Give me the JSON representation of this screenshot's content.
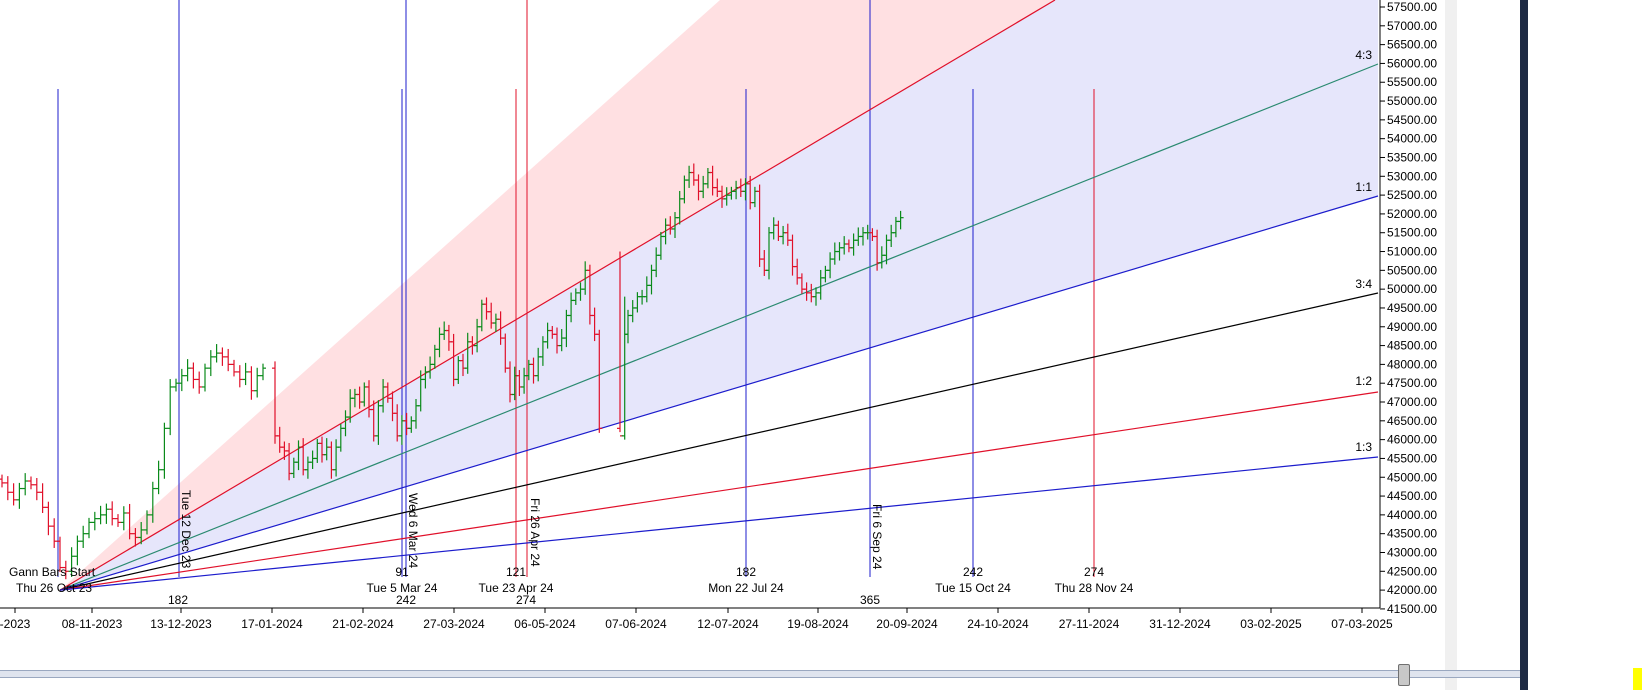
{
  "chart_data": {
    "type": "bar",
    "style": "ohlc",
    "colors": {
      "up": "#0a8a1a",
      "down": "#e0102a",
      "blue": "#1c1ccc",
      "red": "#e0102a",
      "teal": "#2a8a70",
      "black": "#000000",
      "fill_pink": "#ffe0e2",
      "fill_lavender": "#e6e6fb"
    },
    "y_axis": {
      "range": [
        41500,
        57500
      ],
      "tick_labels": [
        "57500.00",
        "57000.00",
        "56500.00",
        "56000.00",
        "55500.00",
        "55000.00",
        "54500.00",
        "54000.00",
        "53500.00",
        "53000.00",
        "52500.00",
        "52000.00",
        "51500.00",
        "51000.00",
        "50500.00",
        "50000.00",
        "49500.00",
        "49000.00",
        "48500.00",
        "48000.00",
        "47500.00",
        "47000.00",
        "46500.00",
        "46000.00",
        "45500.00",
        "45000.00",
        "44500.00",
        "44000.00",
        "43500.00",
        "43000.00",
        "42500.00",
        "42000.00",
        "41500.00"
      ]
    },
    "x_axis": {
      "tick_labels": [
        "-2023",
        "08-11-2023",
        "13-12-2023",
        "17-01-2024",
        "21-02-2024",
        "27-03-2024",
        "06-05-2024",
        "07-06-2024",
        "12-07-2024",
        "19-08-2024",
        "20-09-2024",
        "24-10-2024",
        "27-11-2024",
        "31-12-2024",
        "03-02-2025",
        "07-03-2025"
      ]
    },
    "gann_origin": {
      "label": "Gann Bars Start",
      "date_label": "Thu 26 Oct 23",
      "price": 42000
    },
    "fan_ratios": [
      "4:3",
      "1:1",
      "3:4",
      "1:2",
      "1:3"
    ],
    "cycle_lines": [
      {
        "top_text": "91",
        "bottom_text": "Tue 5 Mar 24"
      },
      {
        "top_text": "121",
        "bottom_text": "Tue 23 Apr 24"
      },
      {
        "top_text": "182",
        "bottom_text": "Mon 22 Jul 24"
      },
      {
        "top_text": "242",
        "bottom_text": "Tue 15 Oct 24"
      },
      {
        "top_text": "274",
        "bottom_text": "Thu 28 Nov 24"
      }
    ],
    "full_lines": [
      {
        "rot_text": "Tue 12 Dec 23",
        "bottom_text": "182"
      },
      {
        "rot_text": "Wed 6 Mar 24",
        "bottom_text": "242"
      },
      {
        "rot_text": "Fri 26 Apr 24",
        "bottom_text": "274"
      },
      {
        "rot_text": "Fri 6 Sep 24",
        "bottom_text": "365"
      }
    ],
    "price_series_approx": [
      44850,
      44600,
      44400,
      44700,
      44900,
      44800,
      44600,
      44200,
      43700,
      43300,
      42600,
      42500,
      42900,
      43300,
      43500,
      43800,
      43900,
      44000,
      44150,
      43900,
      43800,
      44050,
      43500,
      43400,
      43600,
      44000,
      44700,
      45200,
      46300,
      47400,
      47500,
      47700,
      47900,
      47600,
      47400,
      47900,
      48200,
      48300,
      48200,
      48000,
      47800,
      47600,
      47800,
      47300,
      47700,
      47900,
      46100,
      45800,
      45700,
      45100,
      45400,
      45800,
      45200,
      45400,
      45500,
      45900,
      45600,
      45800,
      45200,
      45800,
      46300,
      46600,
      47100,
      47200,
      47000,
      47400,
      46800,
      46100,
      46900,
      47400,
      47100,
      46700,
      46100,
      46500,
      46300,
      46500,
      46900,
      47600,
      47800,
      48000,
      48400,
      48800,
      48900,
      48600,
      47600,
      48100,
      47900,
      48600,
      48500,
      49000,
      49600,
      49400,
      49100,
      49200,
      48700,
      47900,
      47200,
      47700,
      47400,
      47700,
      48000,
      47700,
      48200,
      48600,
      48900,
      48800,
      48500,
      48700,
      49300,
      49700,
      49900,
      50000,
      50500,
      49300,
      48800,
      46300,
      46100,
      48800,
      49300,
      49500,
      49800,
      49800,
      50100,
      50500,
      50900,
      51400,
      51700,
      51600,
      51900,
      52400,
      52900,
      53100,
      52900,
      52600,
      52800,
      53100,
      52700,
      52600,
      52400,
      52500,
      52600,
      52700,
      52600,
      52800,
      52300,
      52600,
      50800,
      50500,
      51500,
      51700,
      51400,
      51500,
      51300,
      50600,
      50300,
      50000,
      49900,
      49800,
      49900,
      50300,
      50500,
      50800,
      51000,
      51100,
      51200,
      51100,
      51300,
      51400,
      51500,
      51500,
      51400,
      50700,
      50900,
      51300,
      51500,
      51800,
      51900
    ]
  }
}
